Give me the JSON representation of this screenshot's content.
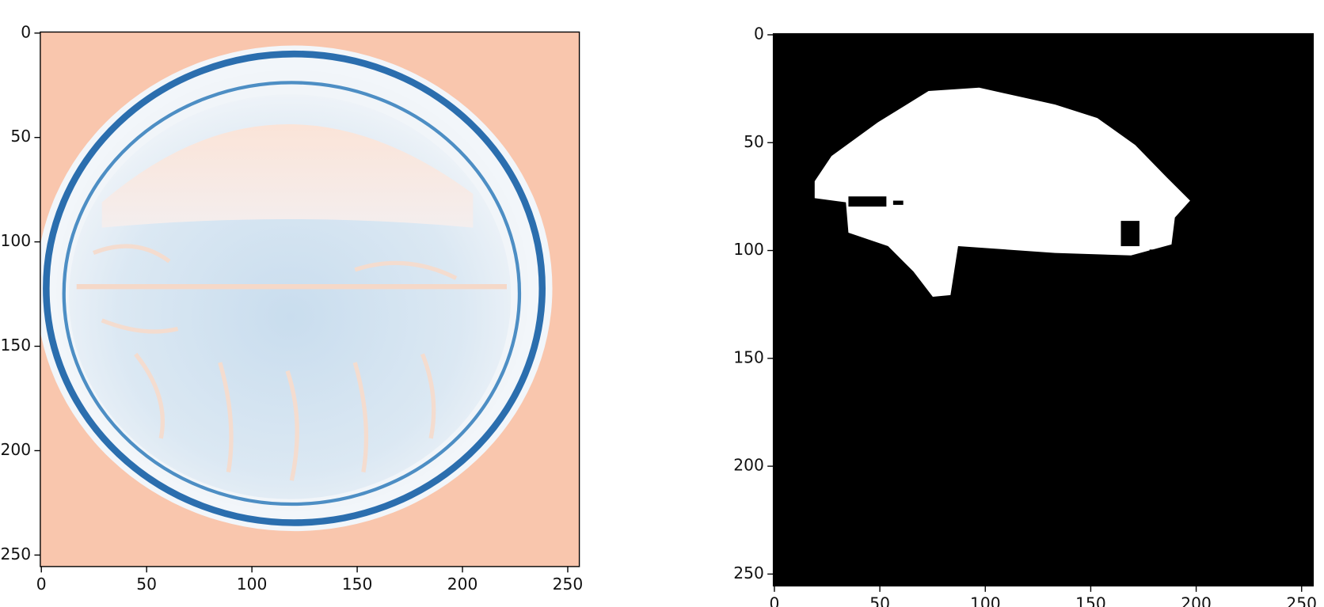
{
  "chart_data": [
    {
      "type": "image",
      "xlim": [
        -0.5,
        255.5
      ],
      "ylim": [
        255.5,
        -0.5
      ],
      "xticks": [
        0,
        50,
        100,
        150,
        200,
        250
      ],
      "yticks": [
        0,
        50,
        100,
        150,
        200,
        250
      ]
    },
    {
      "type": "image",
      "xlim": [
        -0.5,
        255.5
      ],
      "ylim": [
        255.5,
        -0.5
      ],
      "xticks": [
        0,
        50,
        100,
        150,
        200,
        250
      ],
      "yticks": [
        0,
        50,
        100,
        150,
        200,
        250
      ]
    }
  ]
}
